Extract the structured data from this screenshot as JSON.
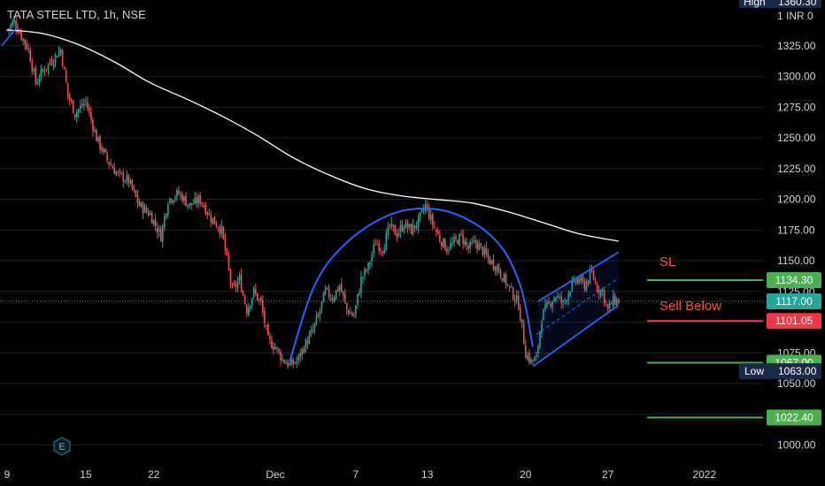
{
  "title": "TATA STEEL LTD, 1h, NSE",
  "chart_data": {
    "type": "candlestick",
    "symbol": "TATA STEEL LTD",
    "interval": "1h",
    "exchange": "NSE",
    "currency": "INR",
    "ylim": [
      985,
      1362
    ],
    "y_ticks": [
      1000,
      1025,
      1050,
      1075,
      1100,
      1125,
      1150,
      1175,
      1200,
      1225,
      1250,
      1275,
      1300,
      1325
    ],
    "y_tick_labels": [
      "1000.00",
      "1025.00",
      "1050.00",
      "1075.00",
      "1100.00",
      "1125.00",
      "1150.00",
      "1175.00",
      "1200.00",
      "1225.00",
      "1250.00",
      "1275.00",
      "1300.00",
      "1325.00"
    ],
    "x_ticks": [
      {
        "label": "9",
        "bar": 0
      },
      {
        "label": "15",
        "bar": 44
      },
      {
        "label": "22",
        "bar": 82
      },
      {
        "label": "Dec",
        "bar": 150
      },
      {
        "label": "7",
        "bar": 195
      },
      {
        "label": "13",
        "bar": 235
      },
      {
        "label": "20",
        "bar": 290
      },
      {
        "label": "27",
        "bar": 336
      },
      {
        "label": "2022",
        "bar": 390
      }
    ],
    "close_path": [
      {
        "bar": 0,
        "price": 1338
      },
      {
        "bar": 4,
        "price": 1345
      },
      {
        "bar": 8,
        "price": 1333
      },
      {
        "bar": 12,
        "price": 1322
      },
      {
        "bar": 16,
        "price": 1295
      },
      {
        "bar": 20,
        "price": 1305
      },
      {
        "bar": 26,
        "price": 1315
      },
      {
        "bar": 30,
        "price": 1322
      },
      {
        "bar": 34,
        "price": 1285
      },
      {
        "bar": 38,
        "price": 1270
      },
      {
        "bar": 44,
        "price": 1280
      },
      {
        "bar": 50,
        "price": 1250
      },
      {
        "bar": 56,
        "price": 1232
      },
      {
        "bar": 62,
        "price": 1220
      },
      {
        "bar": 68,
        "price": 1215
      },
      {
        "bar": 74,
        "price": 1195
      },
      {
        "bar": 80,
        "price": 1188
      },
      {
        "bar": 86,
        "price": 1170
      },
      {
        "bar": 90,
        "price": 1200
      },
      {
        "bar": 96,
        "price": 1205
      },
      {
        "bar": 102,
        "price": 1195
      },
      {
        "bar": 108,
        "price": 1200
      },
      {
        "bar": 114,
        "price": 1185
      },
      {
        "bar": 120,
        "price": 1175
      },
      {
        "bar": 126,
        "price": 1125
      },
      {
        "bar": 130,
        "price": 1135
      },
      {
        "bar": 134,
        "price": 1110
      },
      {
        "bar": 138,
        "price": 1125
      },
      {
        "bar": 142,
        "price": 1115
      },
      {
        "bar": 146,
        "price": 1085
      },
      {
        "bar": 150,
        "price": 1080
      },
      {
        "bar": 154,
        "price": 1070
      },
      {
        "bar": 158,
        "price": 1065
      },
      {
        "bar": 162,
        "price": 1068
      },
      {
        "bar": 166,
        "price": 1080
      },
      {
        "bar": 170,
        "price": 1090
      },
      {
        "bar": 174,
        "price": 1105
      },
      {
        "bar": 178,
        "price": 1125
      },
      {
        "bar": 182,
        "price": 1120
      },
      {
        "bar": 186,
        "price": 1130
      },
      {
        "bar": 190,
        "price": 1110
      },
      {
        "bar": 194,
        "price": 1105
      },
      {
        "bar": 198,
        "price": 1135
      },
      {
        "bar": 202,
        "price": 1145
      },
      {
        "bar": 206,
        "price": 1165
      },
      {
        "bar": 210,
        "price": 1160
      },
      {
        "bar": 214,
        "price": 1178
      },
      {
        "bar": 218,
        "price": 1172
      },
      {
        "bar": 222,
        "price": 1180
      },
      {
        "bar": 226,
        "price": 1175
      },
      {
        "bar": 230,
        "price": 1182
      },
      {
        "bar": 234,
        "price": 1195
      },
      {
        "bar": 238,
        "price": 1180
      },
      {
        "bar": 242,
        "price": 1168
      },
      {
        "bar": 246,
        "price": 1160
      },
      {
        "bar": 250,
        "price": 1165
      },
      {
        "bar": 254,
        "price": 1170
      },
      {
        "bar": 258,
        "price": 1160
      },
      {
        "bar": 262,
        "price": 1165
      },
      {
        "bar": 266,
        "price": 1158
      },
      {
        "bar": 270,
        "price": 1150
      },
      {
        "bar": 274,
        "price": 1145
      },
      {
        "bar": 278,
        "price": 1135
      },
      {
        "bar": 282,
        "price": 1125
      },
      {
        "bar": 286,
        "price": 1115
      },
      {
        "bar": 290,
        "price": 1075
      },
      {
        "bar": 293,
        "price": 1068
      },
      {
        "bar": 296,
        "price": 1070
      },
      {
        "bar": 299,
        "price": 1105
      },
      {
        "bar": 303,
        "price": 1115
      },
      {
        "bar": 307,
        "price": 1122
      },
      {
        "bar": 311,
        "price": 1115
      },
      {
        "bar": 315,
        "price": 1128
      },
      {
        "bar": 319,
        "price": 1135
      },
      {
        "bar": 323,
        "price": 1130
      },
      {
        "bar": 327,
        "price": 1140
      },
      {
        "bar": 330,
        "price": 1128
      },
      {
        "bar": 333,
        "price": 1125
      },
      {
        "bar": 336,
        "price": 1110
      },
      {
        "bar": 339,
        "price": 1118
      },
      {
        "bar": 342,
        "price": 1117
      }
    ],
    "moving_average": {
      "color": "#ffffff",
      "points": [
        {
          "bar": 0,
          "price": 1338
        },
        {
          "bar": 20,
          "price": 1335
        },
        {
          "bar": 40,
          "price": 1326
        },
        {
          "bar": 60,
          "price": 1312
        },
        {
          "bar": 80,
          "price": 1295
        },
        {
          "bar": 100,
          "price": 1282
        },
        {
          "bar": 120,
          "price": 1268
        },
        {
          "bar": 140,
          "price": 1252
        },
        {
          "bar": 160,
          "price": 1234
        },
        {
          "bar": 180,
          "price": 1220
        },
        {
          "bar": 200,
          "price": 1209
        },
        {
          "bar": 220,
          "price": 1203
        },
        {
          "bar": 240,
          "price": 1200
        },
        {
          "bar": 260,
          "price": 1197
        },
        {
          "bar": 280,
          "price": 1190
        },
        {
          "bar": 300,
          "price": 1181
        },
        {
          "bar": 320,
          "price": 1172
        },
        {
          "bar": 342,
          "price": 1166
        }
      ]
    },
    "drawings": {
      "color": "#2962ff",
      "rounding_arc": [
        {
          "bar": 158,
          "price": 1068
        },
        {
          "bar": 172,
          "price": 1130
        },
        {
          "bar": 190,
          "price": 1165
        },
        {
          "bar": 215,
          "price": 1188
        },
        {
          "bar": 240,
          "price": 1192
        },
        {
          "bar": 262,
          "price": 1180
        },
        {
          "bar": 278,
          "price": 1158
        },
        {
          "bar": 288,
          "price": 1125
        },
        {
          "bar": 294,
          "price": 1080
        }
      ],
      "left_trendline": [
        {
          "bar": -3,
          "price": 1325
        },
        {
          "bar": 6,
          "price": 1341
        }
      ],
      "channel_upper": [
        {
          "bar": 297,
          "price": 1117
        },
        {
          "bar": 342,
          "price": 1157
        }
      ],
      "channel_lower": [
        {
          "bar": 294,
          "price": 1064
        },
        {
          "bar": 342,
          "price": 1114
        }
      ],
      "channel_mid": [
        {
          "bar": 296,
          "price": 1090
        },
        {
          "bar": 342,
          "price": 1136
        }
      ]
    },
    "levels": [
      {
        "name": "SL",
        "price": 1134.3,
        "label": "1134.30",
        "color": "#4caf50",
        "annotation": "SL"
      },
      {
        "name": "sell-below",
        "price": 1101.05,
        "label": "1101.05",
        "color": "#f23645",
        "annotation": "Sell Below"
      },
      {
        "name": "target-1",
        "price": 1067.0,
        "label": "1067.00",
        "color": "#4caf50"
      },
      {
        "name": "target-2",
        "price": 1022.4,
        "label": "1022.40",
        "color": "#4caf50"
      }
    ],
    "current_price": {
      "price": 1117.0,
      "label": "1117.00",
      "color": "#26a69a"
    },
    "high": {
      "label": "High",
      "value": "1360.30"
    },
    "low": {
      "label": "Low",
      "value": "1063.00"
    },
    "currency_label": "INR"
  }
}
